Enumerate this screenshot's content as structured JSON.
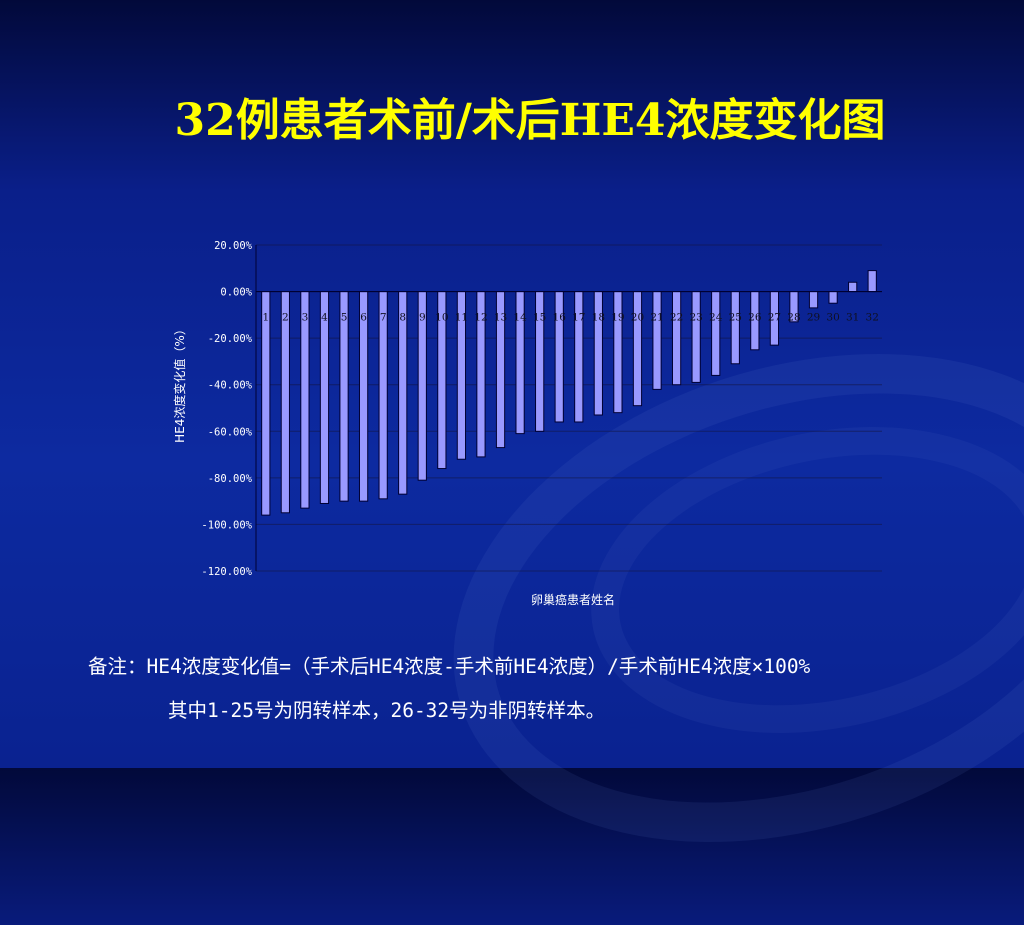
{
  "slide": {
    "title": "32例患者术前/术后HE4浓度变化图",
    "note_line1": "备注：HE4浓度变化值=（手术后HE4浓度-手术前HE4浓度）/手术前HE4浓度×100%",
    "note_line2": "其中1-25号为阴转样本，26-32号为非阴转样本。"
  },
  "colors": {
    "bar_fill": "#9999ff",
    "bar_stroke": "#000033",
    "title": "#ffff00",
    "text": "#ffffff"
  },
  "chart_data": {
    "type": "bar",
    "title": "",
    "xlabel": "卵巢癌患者姓名",
    "ylabel": "HE4浓度变化值（%）",
    "ylim": [
      -120,
      20
    ],
    "y_ticks": [
      20,
      0,
      -20,
      -40,
      -60,
      -80,
      -100,
      -120
    ],
    "y_tick_labels": [
      "20.00%",
      "0.00%",
      "-20.00%",
      "-40.00%",
      "-60.00%",
      "-80.00%",
      "-100.00%",
      "-120.00%"
    ],
    "grid": true,
    "categories": [
      "1",
      "2",
      "3",
      "4",
      "5",
      "6",
      "7",
      "8",
      "9",
      "10",
      "11",
      "12",
      "13",
      "14",
      "15",
      "16",
      "17",
      "18",
      "19",
      "20",
      "21",
      "22",
      "23",
      "24",
      "25",
      "26",
      "27",
      "28",
      "29",
      "30",
      "31",
      "32"
    ],
    "values": [
      -96,
      -95,
      -93,
      -91,
      -90,
      -90,
      -89,
      -87,
      -81,
      -76,
      -72,
      -71,
      -67,
      -61,
      -60,
      -56,
      -56,
      -53,
      -52,
      -49,
      -42,
      -40,
      -39,
      -36,
      -31,
      -25,
      -23,
      -13,
      -7,
      -5,
      4,
      9
    ]
  }
}
